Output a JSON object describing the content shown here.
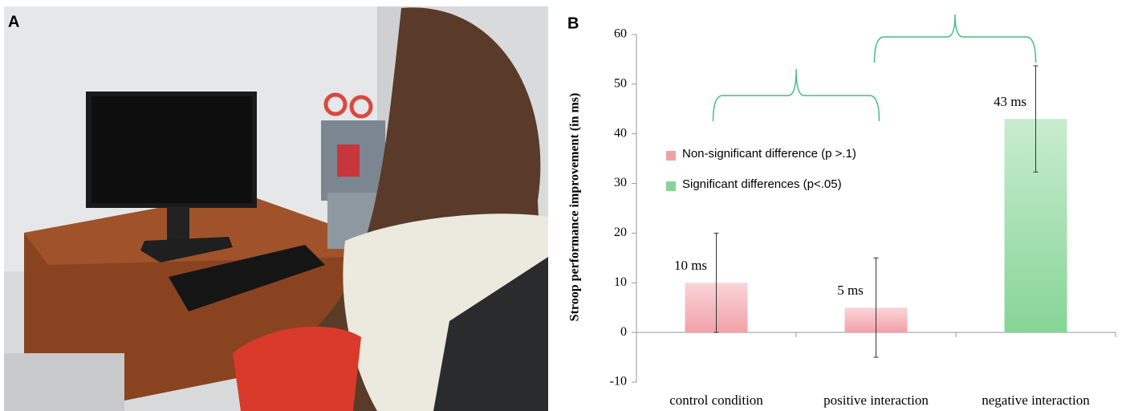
{
  "panel_labels": [
    "A",
    "B"
  ],
  "chart_data": {
    "type": "bar",
    "y_label": "Stroop performance improvement (in ms)",
    "categories": [
      "control condition",
      "positive interaction",
      "negative interaction"
    ],
    "values": [
      10,
      5,
      43
    ],
    "value_labels": [
      "10 ms",
      "5 ms",
      "43 ms"
    ],
    "errors": [
      10,
      10,
      10.7
    ],
    "colors": [
      "#f1a1a8",
      "#f1a1a8",
      "#86d596"
    ],
    "legend": [
      {
        "name": "Non-significant difference (p >.1)",
        "color": "#f1a1a8"
      },
      {
        "name": "Significant differences (p<.05)",
        "color": "#86d596"
      }
    ],
    "ylim": [
      -10,
      60
    ],
    "yticks": [
      -10,
      0,
      10,
      20,
      30,
      40,
      50,
      60
    ]
  }
}
